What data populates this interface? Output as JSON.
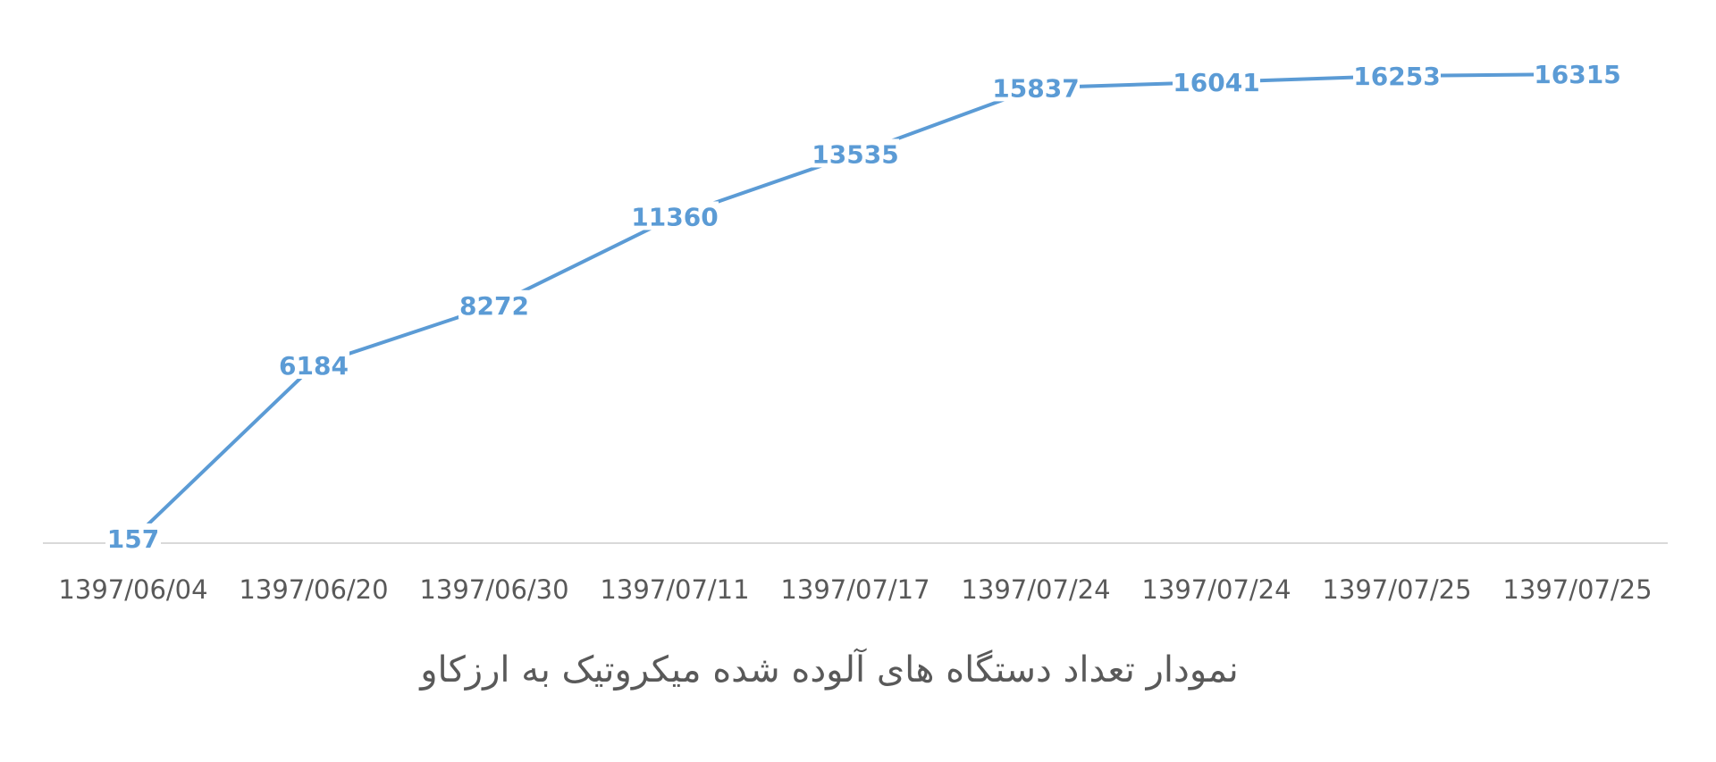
{
  "colors": {
    "series": "#5B9BD5",
    "axis": "#D9D9D9",
    "text": "#595959"
  },
  "chart_data": {
    "type": "line",
    "title": "نمودار تعداد دستگاه های آلوده شده میکروتیک به ارزکاو",
    "xlabel": "",
    "ylabel": "",
    "categories": [
      "1397/06/04",
      "1397/06/20",
      "1397/06/30",
      "1397/07/11",
      "1397/07/17",
      "1397/07/24",
      "1397/07/24",
      "1397/07/25",
      "1397/07/25"
    ],
    "series": [
      {
        "values": [
          157,
          6184,
          8272,
          11360,
          13535,
          15837,
          16041,
          16253,
          16315
        ]
      }
    ],
    "ylim": [
      0,
      16315
    ],
    "grid": false,
    "legend": "none",
    "data_labels": true
  }
}
